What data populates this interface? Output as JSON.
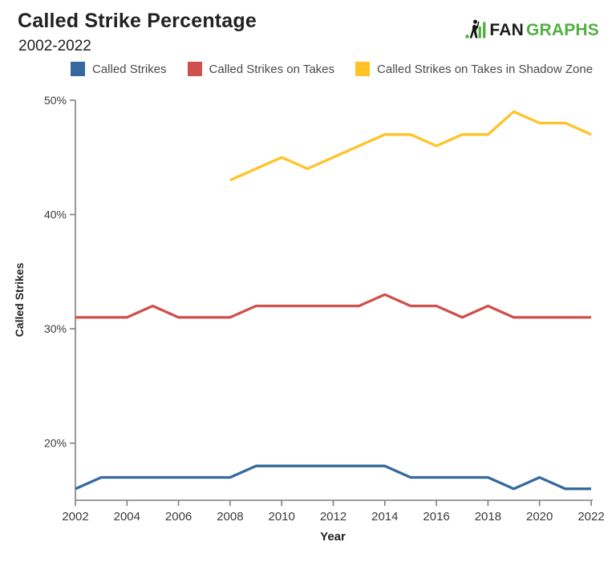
{
  "logo": {
    "fan": "FAN",
    "graphs": "GRAPHS",
    "green": "#52b043",
    "dark": "#1e1e1e"
  },
  "chart_data": {
    "type": "line",
    "title": "Called Strike Percentage",
    "subtitle": "2002-2022",
    "xlabel": "Year",
    "ylabel": "Called Strikes",
    "x_range": [
      2002,
      2022
    ],
    "y_range": [
      15,
      50
    ],
    "x_ticks": [
      2002,
      2004,
      2006,
      2008,
      2010,
      2012,
      2014,
      2016,
      2018,
      2020,
      2022
    ],
    "y_ticks": [
      20,
      30,
      40,
      50
    ],
    "y_tick_labels": [
      "20%",
      "30%",
      "40%",
      "50%"
    ],
    "grid": false,
    "legend_position": "top",
    "series": [
      {
        "name": "Called Strikes",
        "color": "#36699e",
        "start_year": 2002,
        "values": [
          16,
          17,
          17,
          17,
          17,
          17,
          17,
          18,
          18,
          18,
          18,
          18,
          18,
          17,
          17,
          17,
          17,
          16,
          17,
          16,
          16
        ]
      },
      {
        "name": "Called Strikes on Takes",
        "color": "#d0504d",
        "start_year": 2002,
        "values": [
          31,
          31,
          31,
          32,
          31,
          31,
          31,
          32,
          32,
          32,
          32,
          32,
          33,
          32,
          32,
          31,
          32,
          31,
          31,
          31,
          31
        ]
      },
      {
        "name": "Called Strikes on Takes in Shadow Zone",
        "color": "#ffc325",
        "start_year": 2008,
        "values": [
          43,
          44,
          45,
          44,
          45,
          46,
          47,
          47,
          46,
          47,
          47,
          49,
          48,
          48,
          47
        ]
      }
    ]
  }
}
